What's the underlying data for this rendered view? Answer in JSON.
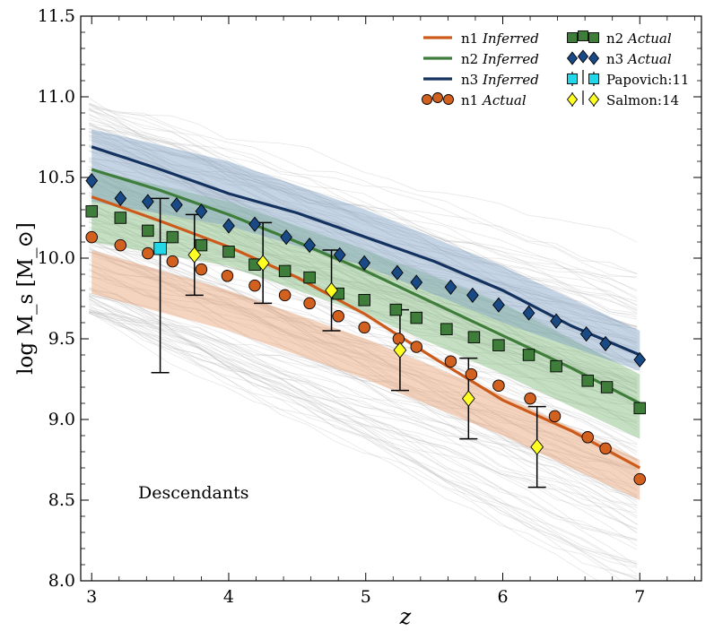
{
  "chart_data": {
    "type": "line",
    "title": "",
    "xlabel": "z",
    "ylabel": "log M_s [M_⊙]",
    "annotation": "Descendants",
    "xlim": [
      2.92,
      7.45
    ],
    "ylim": [
      8.0,
      11.5
    ],
    "xticks": [
      3,
      4,
      5,
      6,
      7
    ],
    "yticks": [
      8.0,
      8.5,
      9.0,
      9.5,
      10.0,
      10.5,
      11.0,
      11.5
    ],
    "ytick_labels": [
      "8.0",
      "8.5",
      "9.0",
      "9.5",
      "10.0",
      "10.5",
      "11.0",
      "11.5"
    ],
    "legend_position": "top-right",
    "colors": {
      "n1": "#cc5a1a",
      "n1_marker": "#d2601f",
      "n2": "#3e7d3a",
      "n2_marker": "#3e7d3a",
      "n3": "#14325f",
      "n3_marker": "#1a4a86",
      "papovich": "#22d8e8",
      "salmon": "#ffff22",
      "background_tracks": "#b8b8b8",
      "band_n1": "#e8a070",
      "band_n2": "#7fb87a",
      "band_n3": "#7f9fc4"
    },
    "bands": [
      {
        "name": "n1",
        "x": [
          3.0,
          4.0,
          5.0,
          6.0,
          7.0
        ],
        "lower": [
          9.78,
          9.55,
          9.25,
          8.9,
          8.5
        ],
        "upper": [
          10.05,
          9.8,
          9.5,
          9.15,
          8.75
        ]
      },
      {
        "name": "n2",
        "x": [
          3.0,
          4.0,
          5.0,
          6.0,
          7.0
        ],
        "lower": [
          10.1,
          9.95,
          9.65,
          9.28,
          8.88
        ],
        "upper": [
          10.55,
          10.35,
          10.05,
          9.72,
          9.28
        ]
      },
      {
        "name": "n3",
        "x": [
          3.0,
          4.0,
          5.0,
          6.0,
          7.0
        ],
        "lower": [
          10.35,
          10.2,
          9.95,
          9.6,
          9.3
        ],
        "upper": [
          10.8,
          10.6,
          10.3,
          9.95,
          9.55
        ]
      }
    ],
    "inferred": [
      {
        "name": "n1 Inferred",
        "x": [
          3.0,
          3.5,
          4.0,
          4.5,
          5.0,
          5.5,
          6.0,
          6.5,
          7.0
        ],
        "values": [
          10.38,
          10.23,
          10.07,
          9.88,
          9.65,
          9.38,
          9.12,
          8.93,
          8.7
        ]
      },
      {
        "name": "n2 Inferred",
        "x": [
          3.0,
          3.5,
          4.0,
          4.5,
          5.0,
          5.5,
          6.0,
          6.5,
          7.0
        ],
        "values": [
          10.55,
          10.42,
          10.27,
          10.1,
          9.92,
          9.72,
          9.52,
          9.32,
          9.1
        ]
      },
      {
        "name": "n3 Inferred",
        "x": [
          3.0,
          3.5,
          4.0,
          4.5,
          5.0,
          5.5,
          6.0,
          6.5,
          7.0
        ],
        "values": [
          10.69,
          10.55,
          10.4,
          10.28,
          10.13,
          9.98,
          9.8,
          9.58,
          9.4
        ]
      }
    ],
    "actual": [
      {
        "name": "n1 Actual",
        "marker": "circle",
        "x": [
          3.0,
          3.21,
          3.41,
          3.59,
          3.8,
          3.99,
          4.19,
          4.41,
          4.59,
          4.8,
          4.99,
          5.24,
          5.37,
          5.62,
          5.77,
          5.97,
          6.2,
          6.38,
          6.62,
          6.75,
          7.0
        ],
        "values": [
          10.13,
          10.08,
          10.03,
          9.98,
          9.93,
          9.89,
          9.83,
          9.77,
          9.72,
          9.64,
          9.57,
          9.5,
          9.45,
          9.36,
          9.28,
          9.21,
          9.13,
          9.02,
          8.89,
          8.82,
          8.63
        ]
      },
      {
        "name": "n2 Actual",
        "marker": "square",
        "x": [
          3.0,
          3.21,
          3.41,
          3.59,
          3.8,
          4.0,
          4.19,
          4.41,
          4.59,
          4.8,
          4.99,
          5.22,
          5.37,
          5.59,
          5.79,
          5.97,
          6.19,
          6.39,
          6.62,
          6.76,
          7.0
        ],
        "values": [
          10.29,
          10.25,
          10.17,
          10.13,
          10.08,
          10.04,
          9.96,
          9.92,
          9.88,
          9.78,
          9.74,
          9.68,
          9.63,
          9.56,
          9.51,
          9.46,
          9.4,
          9.33,
          9.24,
          9.2,
          9.07
        ]
      },
      {
        "name": "n3 Actual",
        "marker": "diamond",
        "x": [
          3.0,
          3.21,
          3.41,
          3.62,
          3.8,
          4.0,
          4.19,
          4.42,
          4.59,
          4.81,
          4.99,
          5.23,
          5.37,
          5.62,
          5.78,
          5.97,
          6.19,
          6.39,
          6.61,
          6.75,
          7.0
        ],
        "values": [
          10.48,
          10.37,
          10.35,
          10.33,
          10.29,
          10.2,
          10.21,
          10.13,
          10.08,
          10.02,
          9.97,
          9.91,
          9.85,
          9.82,
          9.77,
          9.71,
          9.66,
          9.61,
          9.53,
          9.47,
          9.37
        ]
      }
    ],
    "observations": [
      {
        "name": "Papovich:11",
        "marker": "square",
        "x": [
          3.5
        ],
        "values": [
          10.06
        ],
        "err_low": [
          0.77
        ],
        "err_high": [
          0.31
        ]
      },
      {
        "name": "Salmon:14",
        "marker": "diamond",
        "x": [
          3.75,
          4.25,
          4.75,
          5.25,
          5.75,
          6.25
        ],
        "values": [
          10.02,
          9.97,
          9.8,
          9.43,
          9.13,
          8.83
        ],
        "err_low": [
          0.25,
          0.25,
          0.25,
          0.25,
          0.25,
          0.25
        ],
        "err_high": [
          0.25,
          0.25,
          0.25,
          0.25,
          0.25,
          0.25
        ]
      }
    ],
    "legend": {
      "col1": [
        {
          "key": "n1i",
          "text": "n1 ",
          "italic": "Inferred"
        },
        {
          "key": "n2i",
          "text": "n2 ",
          "italic": "Inferred"
        },
        {
          "key": "n3i",
          "text": "n3 ",
          "italic": "Inferred"
        },
        {
          "key": "n1a",
          "text": "n1 ",
          "italic": "Actual"
        }
      ],
      "col2": [
        {
          "key": "n2a",
          "text": "n2 ",
          "italic": "Actual"
        },
        {
          "key": "n3a",
          "text": "n3 ",
          "italic": "Actual"
        },
        {
          "key": "pap",
          "text": "Papovich:11",
          "italic": ""
        },
        {
          "key": "sal",
          "text": "Salmon:14",
          "italic": ""
        }
      ]
    }
  }
}
